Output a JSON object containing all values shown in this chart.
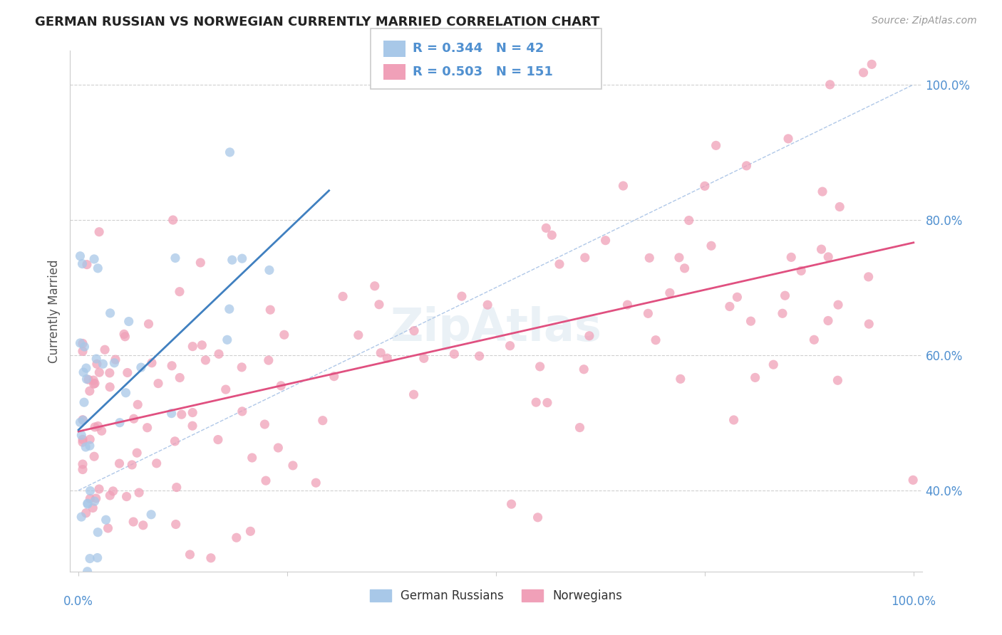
{
  "title": "GERMAN RUSSIAN VS NORWEGIAN CURRENTLY MARRIED CORRELATION CHART",
  "source": "Source: ZipAtlas.com",
  "ylabel": "Currently Married",
  "color_blue": "#a8c8e8",
  "color_pink": "#f0a0b8",
  "color_blue_line": "#4080c0",
  "color_pink_line": "#e05080",
  "color_diag": "#b0c8e8",
  "watermark": "ZipAtlas",
  "legend_text1": "R = 0.344   N = 42",
  "legend_text2": "R = 0.503   N = 151",
  "ytick_labels": [
    "40.0%",
    "60.0%",
    "80.0%",
    "100.0%"
  ],
  "ytick_values": [
    40,
    60,
    80,
    100
  ],
  "ymin": 28,
  "ymax": 105,
  "xmin": -1,
  "xmax": 101
}
